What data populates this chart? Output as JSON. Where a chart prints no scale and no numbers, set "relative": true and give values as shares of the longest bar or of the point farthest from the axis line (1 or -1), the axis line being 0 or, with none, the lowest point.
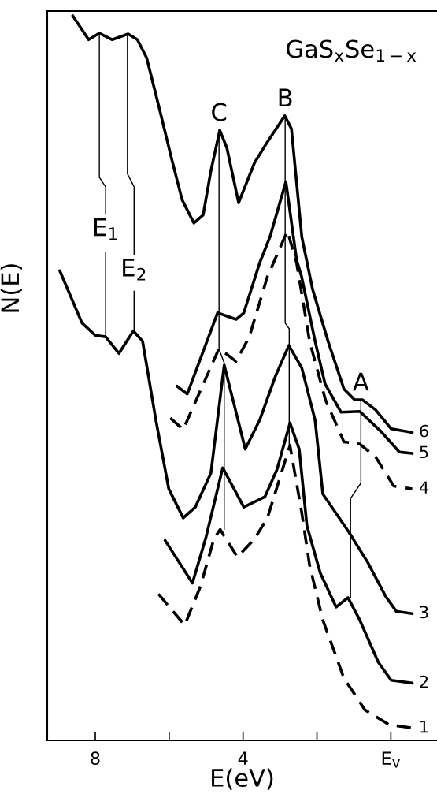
{
  "chart_data": {
    "type": "line",
    "title": "GaS$_{x}$Se$_{1−x}$",
    "xlabel": "E(eV)",
    "ylabel": "N(E)",
    "relative": true,
    "xlim": [
      9.3,
      -1.25
    ],
    "xticks": [
      8,
      {
        "value": 6,
        "label": null
      },
      4,
      {
        "value": 2,
        "label": null
      },
      {
        "value": 0,
        "label": "E$_{V}$"
      }
    ],
    "grid": false,
    "legend": false,
    "series": [
      {
        "name": "6",
        "color": "#000000",
        "line_style": "solid",
        "x": [
          8.61,
          8.18,
          7.89,
          7.54,
          7.11,
          6.86,
          6.61,
          6.29,
          5.94,
          5.65,
          5.33,
          5.08,
          4.87,
          4.63,
          4.44,
          4.12,
          3.69,
          3.34,
          2.87,
          2.69,
          2.41,
          2.12,
          1.7,
          1.27,
          0.98,
          0.77,
          0.41,
          -0.01,
          -0.58
        ],
        "values": [
          1.0,
          0.967,
          0.976,
          0.967,
          0.975,
          0.967,
          0.942,
          0.877,
          0.804,
          0.746,
          0.714,
          0.725,
          0.786,
          0.842,
          0.818,
          0.742,
          0.797,
          0.826,
          0.862,
          0.844,
          0.695,
          0.623,
          0.551,
          0.485,
          0.47,
          0.47,
          0.456,
          0.43,
          0.425
        ]
      },
      {
        "name": "5",
        "color": "#000000",
        "line_style": "solid",
        "x": [
          5.79,
          5.51,
          4.69,
          4.19,
          3.98,
          3.55,
          3.27,
          2.84,
          2.55,
          2.42,
          2.05,
          1.78,
          1.35,
          0.84,
          0.28,
          -0.23,
          -0.58
        ],
        "values": [
          0.489,
          0.478,
          0.59,
          0.581,
          0.59,
          0.659,
          0.695,
          0.771,
          0.663,
          0.641,
          0.551,
          0.492,
          0.453,
          0.454,
          0.427,
          0.398,
          0.396
        ]
      },
      {
        "name": "4",
        "color": "#000000",
        "line_style": "dashed",
        "x": [
          5.97,
          5.62,
          4.65,
          4.19,
          3.83,
          3.34,
          2.8,
          2.55,
          2.2,
          1.77,
          1.27,
          0.84,
          0.41,
          -0.08,
          -0.58
        ],
        "values": [
          0.445,
          0.429,
          0.541,
          0.523,
          0.557,
          0.64,
          0.703,
          0.659,
          0.551,
          0.47,
          0.412,
          0.409,
          0.391,
          0.351,
          0.347
        ]
      },
      {
        "name": "3",
        "color": "#000000",
        "line_style": "solid",
        "x": [
          8.96,
          8.36,
          8.0,
          7.72,
          7.36,
          6.97,
          6.72,
          6.36,
          6.01,
          5.62,
          5.29,
          4.87,
          4.51,
          3.94,
          3.55,
          3.12,
          2.76,
          2.41,
          2.05,
          1.84,
          1.13,
          0.63,
          0.13,
          -0.15,
          -0.58
        ],
        "values": [
          0.648,
          0.576,
          0.559,
          0.557,
          0.534,
          0.565,
          0.551,
          0.442,
          0.347,
          0.307,
          0.322,
          0.369,
          0.518,
          0.402,
          0.442,
          0.503,
          0.545,
          0.514,
          0.442,
          0.34,
          0.287,
          0.246,
          0.198,
          0.178,
          0.175
        ]
      },
      {
        "name": "2",
        "color": "#000000",
        "line_style": "solid",
        "x": [
          6.11,
          5.37,
          5.01,
          4.55,
          3.98,
          3.41,
          3.08,
          2.73,
          2.48,
          2.27,
          1.91,
          1.48,
          1.16,
          0.84,
          0.34,
          -0.01,
          -0.58
        ],
        "values": [
          0.276,
          0.217,
          0.279,
          0.376,
          0.322,
          0.336,
          0.374,
          0.438,
          0.402,
          0.296,
          0.231,
          0.184,
          0.197,
          0.166,
          0.108,
          0.083,
          0.079
        ]
      },
      {
        "name": "1",
        "color": "#000000",
        "line_style": "dashed",
        "x": [
          6.29,
          5.58,
          5.15,
          4.79,
          4.62,
          4.15,
          3.69,
          3.34,
          2.73,
          2.41,
          2.2,
          1.84,
          1.27,
          0.7,
          0.06,
          -0.58
        ],
        "values": [
          0.202,
          0.159,
          0.213,
          0.278,
          0.291,
          0.253,
          0.278,
          0.307,
          0.407,
          0.314,
          0.242,
          0.166,
          0.086,
          0.042,
          0.022,
          0.017
        ]
      },
      {
        "color": "#000000",
        "line_style": "solid",
        "x": [
          7.89,
          7.89,
          7.72,
          7.72,
          null,
          7.72,
          7.72
        ],
        "values": [
          0.976,
          0.777,
          0.764,
          0.726,
          null,
          0.674,
          0.557
        ]
      },
      {
        "color": "#000000",
        "line_style": "solid",
        "x": [
          7.13,
          7.13,
          6.95,
          6.95,
          null,
          6.95,
          6.95
        ],
        "values": [
          0.975,
          0.782,
          0.764,
          0.67,
          null,
          0.62,
          0.565
        ]
      },
      {
        "color": "#000000",
        "line_style": "solid",
        "x": [
          4.65,
          4.65,
          4.51,
          4.51
        ],
        "values": [
          0.842,
          0.54,
          0.521,
          0.291
        ]
      },
      {
        "color": "#000000",
        "line_style": "solid",
        "x": [
          2.86,
          2.86,
          2.75,
          2.75
        ],
        "values": [
          0.862,
          0.576,
          0.568,
          0.407
        ]
      },
      {
        "color": "#000000",
        "line_style": "solid",
        "x": [
          0.81,
          0.81,
          1.09,
          1.09
        ],
        "values": [
          0.47,
          0.355,
          0.334,
          0.197
        ]
      }
    ],
    "annotations": [
      {
        "text": "E$_{1}$",
        "x": 7.72,
        "y": 0.726
      },
      {
        "text": "E$_{2}$",
        "x": 6.95,
        "y": 0.67
      },
      {
        "text": "C",
        "x": 4.65,
        "y": 0.842
      },
      {
        "text": "B",
        "x": 2.86,
        "y": 0.862
      },
      {
        "text": "A",
        "x": 0.81,
        "y": 0.47
      }
    ]
  }
}
